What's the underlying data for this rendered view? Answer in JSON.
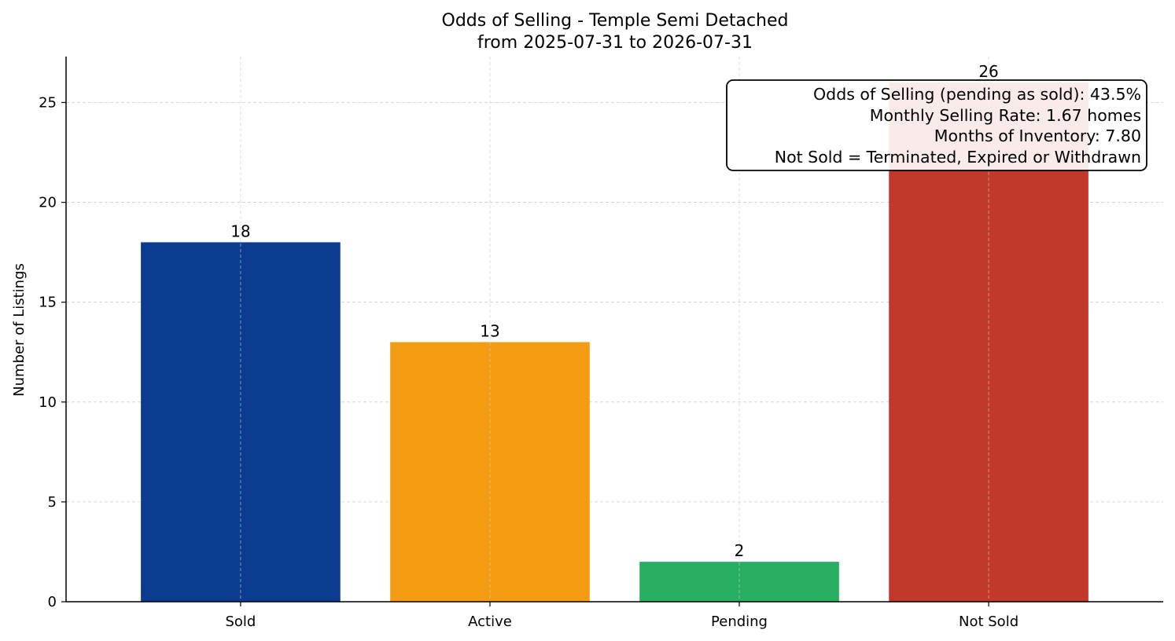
{
  "chart_data": {
    "type": "bar",
    "title": "Odds of Selling - Temple Semi Detached",
    "subtitle": "from 2025-07-31 to 2026-07-31",
    "xlabel": "",
    "ylabel": "Number of Listings",
    "categories": [
      "Sold",
      "Active",
      "Pending",
      "Not Sold"
    ],
    "values": [
      18,
      13,
      2,
      26
    ],
    "colors": [
      "#0b3c8f",
      "#f39c12",
      "#27ae60",
      "#c0392b"
    ],
    "ylim": [
      0,
      27.3
    ],
    "yticks": [
      0,
      5,
      10,
      15,
      20,
      25
    ],
    "grid": true,
    "annotation": {
      "placement": "top-right",
      "lines": [
        "Odds of Selling (pending as sold): 43.5%",
        "Monthly Selling Rate: 1.67 homes",
        "Months of Inventory: 7.80",
        "Not Sold = Terminated, Expired or Withdrawn"
      ]
    }
  }
}
